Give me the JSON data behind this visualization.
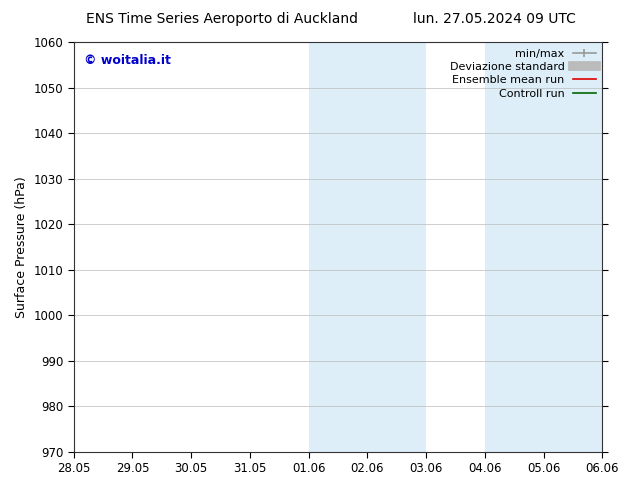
{
  "title_left": "ENS Time Series Aeroporto di Auckland",
  "title_right": "lun. 27.05.2024 09 UTC",
  "ylabel": "Surface Pressure (hPa)",
  "ylim": [
    970,
    1060
  ],
  "yticks": [
    970,
    980,
    990,
    1000,
    1010,
    1020,
    1030,
    1040,
    1050,
    1060
  ],
  "xtick_labels": [
    "28.05",
    "29.05",
    "30.05",
    "31.05",
    "01.06",
    "02.06",
    "03.06",
    "04.06",
    "05.06",
    "06.06"
  ],
  "xtick_positions": [
    0,
    1,
    2,
    3,
    4,
    5,
    6,
    7,
    8,
    9
  ],
  "shaded_regions": [
    {
      "x_start": 4,
      "x_end": 5,
      "color": "#ddeef8"
    },
    {
      "x_start": 5,
      "x_end": 6,
      "color": "#ddeef8"
    },
    {
      "x_start": 7,
      "x_end": 8,
      "color": "#ddeef8"
    },
    {
      "x_start": 8,
      "x_end": 9,
      "color": "#ddeef8"
    }
  ],
  "watermark_text": "© woitalia.it",
  "watermark_color": "#0000cc",
  "background_color": "#ffffff",
  "grid_color": "#bbbbbb",
  "title_fontsize": 10,
  "axis_fontsize": 9,
  "tick_fontsize": 8.5,
  "legend_fontsize": 8
}
